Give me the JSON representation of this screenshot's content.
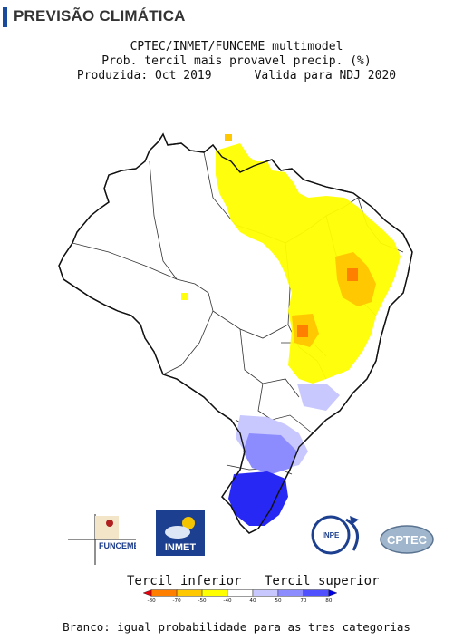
{
  "header": {
    "title": "PREVISÃO CLIMÁTICA"
  },
  "map": {
    "title_line1": "CPTEC/INMET/FUNCEME multimodel",
    "title_line2": "Prob. tercil mais provavel precip. (%)",
    "produced": "Produzida: Oct 2019",
    "valid": "Valida para NDJ 2020"
  },
  "logos": {
    "funceme": "FUNCEME",
    "inmet": "INMET",
    "inpe": "INPE",
    "cptec": "CPTEC"
  },
  "legend": {
    "lower_label": "Tercil inferior",
    "upper_label": "Tercil superior",
    "ticks": [
      "-80",
      "-70",
      "-50",
      "-40",
      "40",
      "50",
      "70",
      "80"
    ],
    "colors": [
      "#e8000b",
      "#ff8000",
      "#ffc800",
      "#ffff00",
      "#ffffff",
      "#c8c8ff",
      "#8c8cff",
      "#5050ff",
      "#0000e8"
    ],
    "footer": "Branco: igual probabilidade para as tres categorias"
  }
}
